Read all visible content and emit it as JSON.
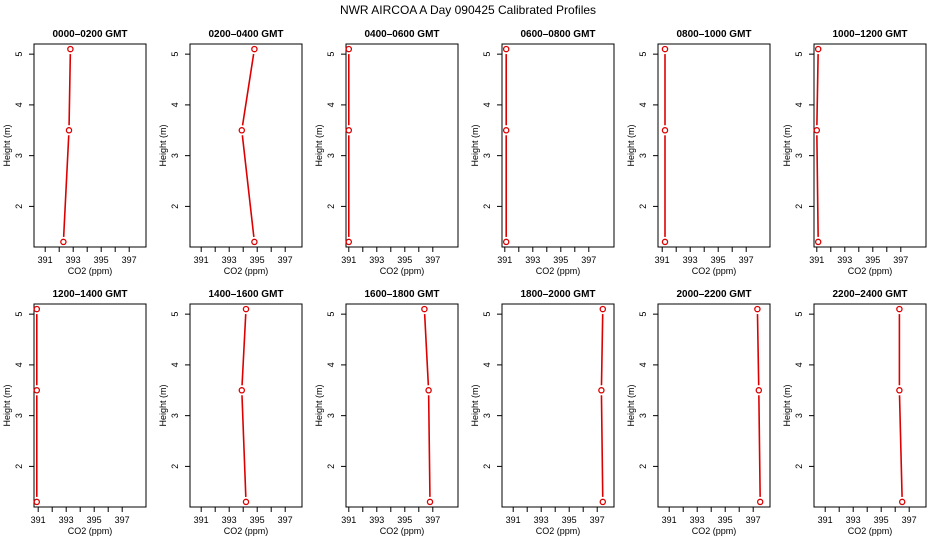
{
  "figure": {
    "title": "NWR AIRCOA A  Day 090425  Calibrated Profiles",
    "series_color": "#dd0000",
    "xlabel": "CO2 (ppm)",
    "ylabel": "Height (m)"
  },
  "chart_data": [
    {
      "type": "line",
      "title": "0000–0200 GMT",
      "xlabel": "CO2 (ppm)",
      "ylabel": "Height (m)",
      "xlim": [
        390.2,
        398.2
      ],
      "ylim": [
        1.2,
        5.2
      ],
      "x_ticks": [
        391,
        393,
        395,
        397
      ],
      "y_ticks": [
        2,
        3,
        4,
        5
      ],
      "points": [
        {
          "x": 392.8,
          "y": 5.1
        },
        {
          "x": 392.7,
          "y": 3.5
        },
        {
          "x": 392.3,
          "y": 1.3
        }
      ]
    },
    {
      "type": "line",
      "title": "0200–0400 GMT",
      "xlabel": "CO2 (ppm)",
      "ylabel": "Height (m)",
      "xlim": [
        390.2,
        398.2
      ],
      "ylim": [
        1.2,
        5.2
      ],
      "x_ticks": [
        391,
        393,
        395,
        397
      ],
      "y_ticks": [
        2,
        3,
        4,
        5
      ],
      "points": [
        {
          "x": 394.8,
          "y": 5.1
        },
        {
          "x": 393.9,
          "y": 3.5
        },
        {
          "x": 394.8,
          "y": 1.3
        }
      ]
    },
    {
      "type": "line",
      "title": "0400–0600 GMT",
      "xlabel": "CO2 (ppm)",
      "ylabel": "Height (m)",
      "xlim": [
        390.8,
        398.8
      ],
      "ylim": [
        1.2,
        5.2
      ],
      "x_ticks": [
        391,
        393,
        395,
        397
      ],
      "y_ticks": [
        2,
        3,
        4,
        5
      ],
      "points": [
        {
          "x": 391.0,
          "y": 5.1
        },
        {
          "x": 391.0,
          "y": 3.5
        },
        {
          "x": 391.0,
          "y": 1.3
        }
      ]
    },
    {
      "type": "line",
      "title": "0600–0800 GMT",
      "xlabel": "CO2 (ppm)",
      "ylabel": "Height (m)",
      "xlim": [
        390.8,
        398.8
      ],
      "ylim": [
        1.2,
        5.2
      ],
      "x_ticks": [
        391,
        393,
        395,
        397
      ],
      "y_ticks": [
        2,
        3,
        4,
        5
      ],
      "points": [
        {
          "x": 391.1,
          "y": 5.1
        },
        {
          "x": 391.1,
          "y": 3.5
        },
        {
          "x": 391.1,
          "y": 1.3
        }
      ]
    },
    {
      "type": "line",
      "title": "0800–1000 GMT",
      "xlabel": "CO2 (ppm)",
      "ylabel": "Height (m)",
      "xlim": [
        390.7,
        398.7
      ],
      "ylim": [
        1.2,
        5.2
      ],
      "x_ticks": [
        391,
        393,
        395,
        397
      ],
      "y_ticks": [
        2,
        3,
        4,
        5
      ],
      "points": [
        {
          "x": 391.2,
          "y": 5.1
        },
        {
          "x": 391.2,
          "y": 3.5
        },
        {
          "x": 391.2,
          "y": 1.3
        }
      ]
    },
    {
      "type": "line",
      "title": "1000–1200 GMT",
      "xlabel": "CO2 (ppm)",
      "ylabel": "Height (m)",
      "xlim": [
        390.8,
        398.8
      ],
      "ylim": [
        1.2,
        5.2
      ],
      "x_ticks": [
        391,
        393,
        395,
        397
      ],
      "y_ticks": [
        2,
        3,
        4,
        5
      ],
      "points": [
        {
          "x": 391.1,
          "y": 5.1
        },
        {
          "x": 391.0,
          "y": 3.5
        },
        {
          "x": 391.1,
          "y": 1.3
        }
      ]
    },
    {
      "type": "line",
      "title": "1200–1400 GMT",
      "xlabel": "CO2 (ppm)",
      "ylabel": "Height (m)",
      "xlim": [
        390.7,
        398.7
      ],
      "ylim": [
        1.2,
        5.2
      ],
      "x_ticks": [
        391,
        393,
        395,
        397
      ],
      "y_ticks": [
        2,
        3,
        4,
        5
      ],
      "points": [
        {
          "x": 390.9,
          "y": 5.1
        },
        {
          "x": 390.9,
          "y": 3.5
        },
        {
          "x": 390.9,
          "y": 1.3
        }
      ]
    },
    {
      "type": "line",
      "title": "1400–1600 GMT",
      "xlabel": "CO2 (ppm)",
      "ylabel": "Height (m)",
      "xlim": [
        390.2,
        398.2
      ],
      "ylim": [
        1.2,
        5.2
      ],
      "x_ticks": [
        391,
        393,
        395,
        397
      ],
      "y_ticks": [
        2,
        3,
        4,
        5
      ],
      "points": [
        {
          "x": 394.2,
          "y": 5.1
        },
        {
          "x": 393.9,
          "y": 3.5
        },
        {
          "x": 394.2,
          "y": 1.3
        }
      ]
    },
    {
      "type": "line",
      "title": "1600–1800 GMT",
      "xlabel": "CO2 (ppm)",
      "ylabel": "Height (m)",
      "xlim": [
        390.8,
        398.8
      ],
      "ylim": [
        1.2,
        5.2
      ],
      "x_ticks": [
        391,
        393,
        395,
        397
      ],
      "y_ticks": [
        2,
        3,
        4,
        5
      ],
      "points": [
        {
          "x": 396.4,
          "y": 5.1
        },
        {
          "x": 396.7,
          "y": 3.5
        },
        {
          "x": 396.8,
          "y": 1.3
        }
      ]
    },
    {
      "type": "line",
      "title": "1800–2000 GMT",
      "xlabel": "CO2 (ppm)",
      "ylabel": "Height (m)",
      "xlim": [
        390.2,
        398.2
      ],
      "ylim": [
        1.2,
        5.2
      ],
      "x_ticks": [
        391,
        393,
        395,
        397
      ],
      "y_ticks": [
        2,
        3,
        4,
        5
      ],
      "points": [
        {
          "x": 397.4,
          "y": 5.1
        },
        {
          "x": 397.3,
          "y": 3.5
        },
        {
          "x": 397.4,
          "y": 1.3
        }
      ]
    },
    {
      "type": "line",
      "title": "2000–2200 GMT",
      "xlabel": "CO2 (ppm)",
      "ylabel": "Height (m)",
      "xlim": [
        390.2,
        398.2
      ],
      "ylim": [
        1.2,
        5.2
      ],
      "x_ticks": [
        391,
        393,
        395,
        397
      ],
      "y_ticks": [
        2,
        3,
        4,
        5
      ],
      "points": [
        {
          "x": 397.3,
          "y": 5.1
        },
        {
          "x": 397.4,
          "y": 3.5
        },
        {
          "x": 397.5,
          "y": 1.3
        }
      ]
    },
    {
      "type": "line",
      "title": "2200–2400 GMT",
      "xlabel": "CO2 (ppm)",
      "ylabel": "Height (m)",
      "xlim": [
        390.2,
        398.2
      ],
      "ylim": [
        1.2,
        5.2
      ],
      "x_ticks": [
        391,
        393,
        395,
        397
      ],
      "y_ticks": [
        2,
        3,
        4,
        5
      ],
      "points": [
        {
          "x": 396.3,
          "y": 5.1
        },
        {
          "x": 396.3,
          "y": 3.5
        },
        {
          "x": 396.5,
          "y": 1.3
        }
      ]
    }
  ]
}
